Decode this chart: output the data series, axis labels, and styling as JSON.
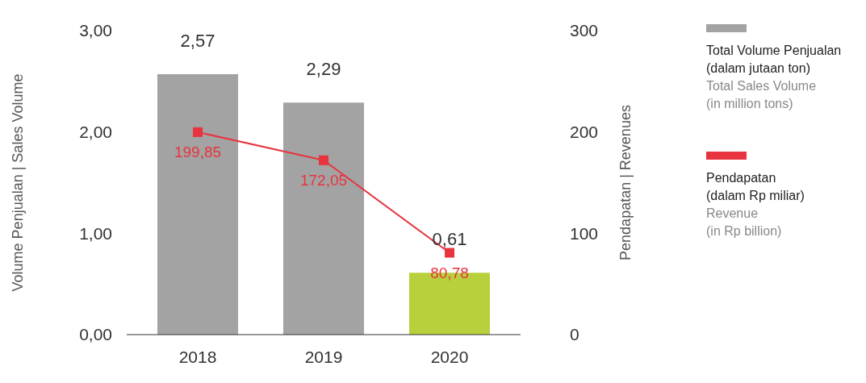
{
  "chart_data": {
    "type": "bar",
    "categories": [
      "2018",
      "2019",
      "2020"
    ],
    "ylabel": "Volume Penjualan | Sales Volume",
    "y2label": "Pendapatan | Revenues",
    "ylim": [
      0,
      3
    ],
    "yticks": [
      {
        "value": 0,
        "label": "0,00"
      },
      {
        "value": 1,
        "label": "1,00"
      },
      {
        "value": 2,
        "label": "2,00"
      },
      {
        "value": 3,
        "label": "3,00"
      }
    ],
    "y2lim": [
      0,
      300
    ],
    "y2ticks": [
      0,
      100,
      200,
      300
    ],
    "series": [
      {
        "name": "Total Volume Penjualan\n(dalam jutaan ton)\nTotal Sales Volume\n(in million tons)",
        "color": "#a3a3a3",
        "colors": [
          "#a3a3a3",
          "#a3a3a3",
          "#b7d03c"
        ],
        "values": [
          2.57,
          2.29,
          0.61
        ],
        "value_labels": [
          "2,57",
          "2,29",
          "0,61"
        ]
      },
      {
        "type": "line",
        "axis": "y2",
        "name": "Pendapatan\n(dalam Rp miliar)\nRevenue\n(in Rp billion)",
        "color": "#e8343f",
        "values": [
          199.85,
          172.05,
          80.78
        ],
        "value_labels": [
          "199,85",
          "172,05",
          "80,78"
        ]
      }
    ],
    "marker": "square",
    "legend": "right"
  }
}
